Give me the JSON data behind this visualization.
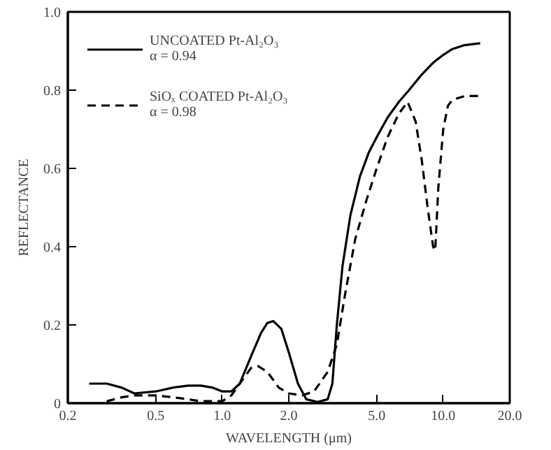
{
  "chart_data": {
    "type": "line",
    "xlabel": "WAVELENGTH (μm)",
    "ylabel": "REFLECTANCE",
    "log": "x",
    "xlim": [
      0.2,
      20
    ],
    "ylim": [
      0,
      1.0
    ],
    "xticks": [
      0.2,
      {
        "value": 0.5,
        "label": "0.5"
      },
      {
        "value": 1,
        "label": "1.0"
      },
      {
        "value": 2,
        "label": "2.0"
      },
      {
        "value": 5,
        "label": "5.0"
      },
      {
        "value": 10,
        "label": "10.0"
      },
      {
        "value": 20,
        "label": "20.0"
      }
    ],
    "yticks": [
      0,
      0.2,
      0.4,
      0.6,
      0.8,
      {
        "value": 1,
        "label": "1.0"
      }
    ],
    "grid": false,
    "legend": "top left",
    "marker": "none",
    "series": [
      {
        "name": "UNCOATED Pt-Al₂O₃\nα = 0.94",
        "color": "#000000",
        "line_style": "solid",
        "x": [
          0.25,
          0.3,
          0.35,
          0.4,
          0.5,
          0.6,
          0.7,
          0.8,
          0.9,
          1.0,
          1.1,
          1.2,
          1.35,
          1.5,
          1.6,
          1.7,
          1.85,
          2.0,
          2.2,
          2.4,
          2.7,
          3.0,
          3.15,
          3.3,
          3.5,
          3.8,
          4.2,
          4.6,
          5.0,
          5.6,
          6.3,
          7.0,
          8.0,
          9.0,
          10.0,
          11.0,
          12.5,
          14.7
        ],
        "values": [
          0.05,
          0.05,
          0.04,
          0.025,
          0.03,
          0.04,
          0.045,
          0.045,
          0.04,
          0.03,
          0.03,
          0.05,
          0.12,
          0.18,
          0.205,
          0.21,
          0.19,
          0.13,
          0.05,
          0.01,
          0.003,
          0.01,
          0.05,
          0.2,
          0.35,
          0.48,
          0.58,
          0.64,
          0.68,
          0.73,
          0.77,
          0.8,
          0.84,
          0.87,
          0.89,
          0.905,
          0.915,
          0.92
        ]
      },
      {
        "name": "SiOₓ COATED Pt-Al₂O₃\nα = 0.98",
        "color": "#000000",
        "line_style": "dashed",
        "x": [
          0.3,
          0.35,
          0.4,
          0.5,
          0.6,
          0.7,
          0.8,
          1.0,
          1.1,
          1.2,
          1.35,
          1.45,
          1.6,
          1.8,
          2.0,
          2.3,
          2.6,
          3.0,
          3.3,
          3.6,
          4.0,
          4.5,
          5.0,
          5.6,
          6.3,
          6.9,
          7.5,
          8.0,
          8.5,
          9.0,
          9.2,
          9.5,
          10.0,
          10.5,
          11.0,
          12.5,
          14.7
        ],
        "values": [
          0.005,
          0.015,
          0.02,
          0.02,
          0.015,
          0.01,
          0.005,
          0.005,
          0.02,
          0.05,
          0.09,
          0.095,
          0.08,
          0.04,
          0.025,
          0.02,
          0.03,
          0.08,
          0.15,
          0.28,
          0.42,
          0.52,
          0.6,
          0.68,
          0.74,
          0.77,
          0.72,
          0.62,
          0.5,
          0.4,
          0.39,
          0.55,
          0.7,
          0.76,
          0.775,
          0.785,
          0.785
        ]
      }
    ]
  }
}
